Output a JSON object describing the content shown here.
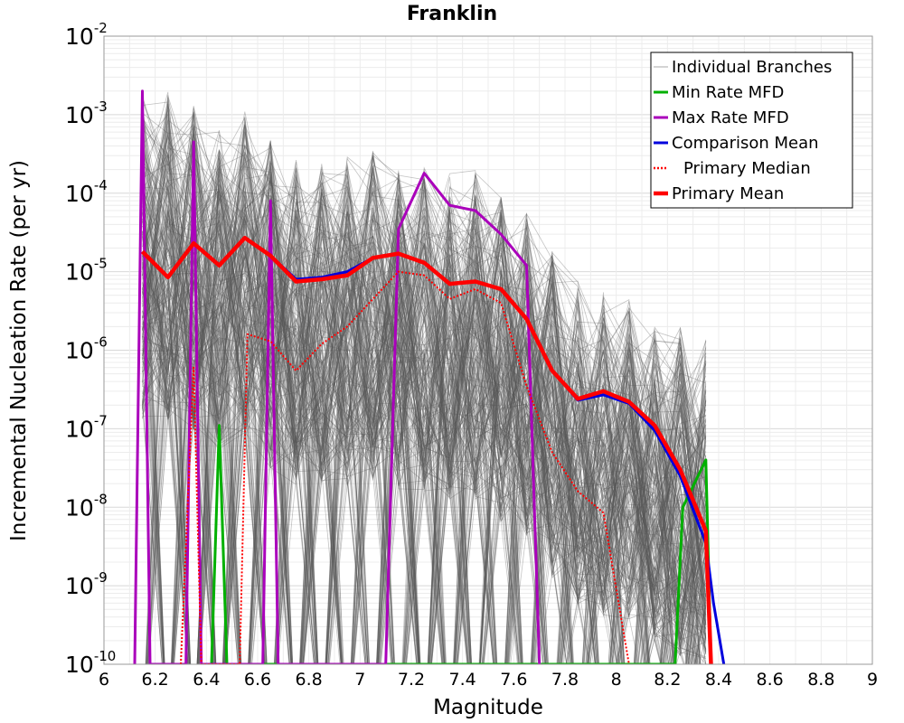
{
  "chart_data": {
    "type": "line",
    "title": "Franklin",
    "xlabel": "Magnitude",
    "ylabel": "Incremental Nucleation Rate (per yr)",
    "xlim": [
      6,
      9
    ],
    "ylim": [
      1e-10,
      0.01
    ],
    "yscale": "log",
    "grid": true,
    "legend_position": "top-right",
    "x_ticks": [
      "6",
      "6.2",
      "6.4",
      "6.6",
      "6.8",
      "7",
      "7.2",
      "7.4",
      "7.6",
      "7.8",
      "8",
      "8.2",
      "8.4",
      "8.6",
      "8.8",
      "9"
    ],
    "y_ticks": [
      {
        "base": "10",
        "exp": "-2"
      },
      {
        "base": "10",
        "exp": "-3"
      },
      {
        "base": "10",
        "exp": "-4"
      },
      {
        "base": "10",
        "exp": "-5"
      },
      {
        "base": "10",
        "exp": "-6"
      },
      {
        "base": "10",
        "exp": "-7"
      },
      {
        "base": "10",
        "exp": "-8"
      },
      {
        "base": "10",
        "exp": "-9"
      },
      {
        "base": "10",
        "exp": "-10"
      }
    ],
    "series": [
      {
        "name": "Individual Branches",
        "color": "#555555",
        "style": "thin",
        "x": [
          6.15,
          6.25,
          6.35,
          6.45,
          6.55,
          6.65,
          6.75,
          6.85,
          6.95,
          7.05,
          7.15,
          7.25,
          7.35,
          7.45,
          7.55,
          7.65,
          7.75,
          7.85,
          7.95,
          8.05,
          8.15,
          8.25,
          8.35
        ],
        "y_upper": [
          0.002,
          0.002,
          0.0015,
          0.0008,
          0.0012,
          0.0005,
          0.0003,
          0.0003,
          0.0003,
          0.00035,
          0.00025,
          0.00025,
          0.0002,
          0.0002,
          0.0001,
          6e-05,
          2e-05,
          8e-06,
          6e-06,
          5e-06,
          3e-06,
          2e-06,
          1.5e-06
        ]
      },
      {
        "name": "Min Rate MFD",
        "color": "#00b000",
        "x": [
          6.42,
          6.45,
          6.48,
          8.23,
          8.26,
          8.35,
          8.37
        ],
        "y": [
          1e-10,
          1.1e-07,
          1e-10,
          1e-10,
          1e-08,
          4e-08,
          1e-10
        ]
      },
      {
        "name": "Max Rate MFD",
        "color": "#aa00bb",
        "x": [
          6.12,
          6.15,
          6.18,
          6.32,
          6.35,
          6.38,
          6.62,
          6.65,
          6.68,
          7.1,
          7.15,
          7.25,
          7.35,
          7.45,
          7.55,
          7.65,
          7.7
        ],
        "y": [
          1e-10,
          0.002,
          1e-10,
          1e-10,
          0.00045,
          1e-10,
          1e-10,
          8e-05,
          1e-10,
          1e-10,
          3.5e-05,
          0.00018,
          7e-05,
          6e-05,
          3e-05,
          1.2e-05,
          1e-10
        ]
      },
      {
        "name": "Comparison Mean",
        "color": "#0000dd",
        "x": [
          6.15,
          6.25,
          6.35,
          6.45,
          6.55,
          6.65,
          6.75,
          6.85,
          6.95,
          7.05,
          7.15,
          7.25,
          7.35,
          7.45,
          7.55,
          7.65,
          7.75,
          7.85,
          7.95,
          8.05,
          8.15,
          8.25,
          8.35,
          8.38,
          8.42
        ],
        "y": [
          1.8e-05,
          8.5e-06,
          2.3e-05,
          1.2e-05,
          2.7e-05,
          1.6e-05,
          8e-06,
          8.5e-06,
          1e-05,
          1.5e-05,
          1.7e-05,
          1.3e-05,
          7e-06,
          7.5e-06,
          6e-06,
          2.5e-06,
          5.5e-07,
          2.3e-07,
          2.7e-07,
          2.1e-07,
          9.5e-08,
          2.5e-08,
          3.5e-09,
          6e-10,
          1e-10
        ]
      },
      {
        "name": "Primary Median",
        "color": "#ff0000",
        "style": "dotted",
        "x": [
          6.3,
          6.35,
          6.38,
          6.53,
          6.56,
          6.65,
          6.75,
          6.85,
          6.95,
          7.05,
          7.15,
          7.25,
          7.35,
          7.45,
          7.55,
          7.65,
          7.75,
          7.85,
          7.95,
          8.05
        ],
        "y": [
          1e-10,
          6e-07,
          1e-10,
          1e-10,
          1.6e-06,
          1.3e-06,
          5.5e-07,
          1.2e-06,
          2e-06,
          4.5e-06,
          1e-05,
          9e-06,
          4.5e-06,
          6e-06,
          4e-06,
          3.5e-07,
          5e-08,
          1.6e-08,
          8.5e-09,
          1e-10
        ]
      },
      {
        "name": "Primary Mean",
        "color": "#ff0000",
        "style": "thick",
        "x": [
          6.15,
          6.25,
          6.35,
          6.45,
          6.55,
          6.65,
          6.75,
          6.85,
          6.95,
          7.05,
          7.15,
          7.25,
          7.35,
          7.45,
          7.55,
          7.65,
          7.75,
          7.85,
          7.95,
          8.05,
          8.15,
          8.25,
          8.35,
          8.37
        ],
        "y": [
          1.8e-05,
          8.5e-06,
          2.3e-05,
          1.2e-05,
          2.7e-05,
          1.6e-05,
          7.5e-06,
          8e-06,
          9e-06,
          1.5e-05,
          1.7e-05,
          1.3e-05,
          7e-06,
          7.5e-06,
          6e-06,
          2.5e-06,
          5.5e-07,
          2.4e-07,
          3e-07,
          2.2e-07,
          1.1e-07,
          3e-08,
          5e-09,
          1e-10
        ]
      }
    ]
  }
}
